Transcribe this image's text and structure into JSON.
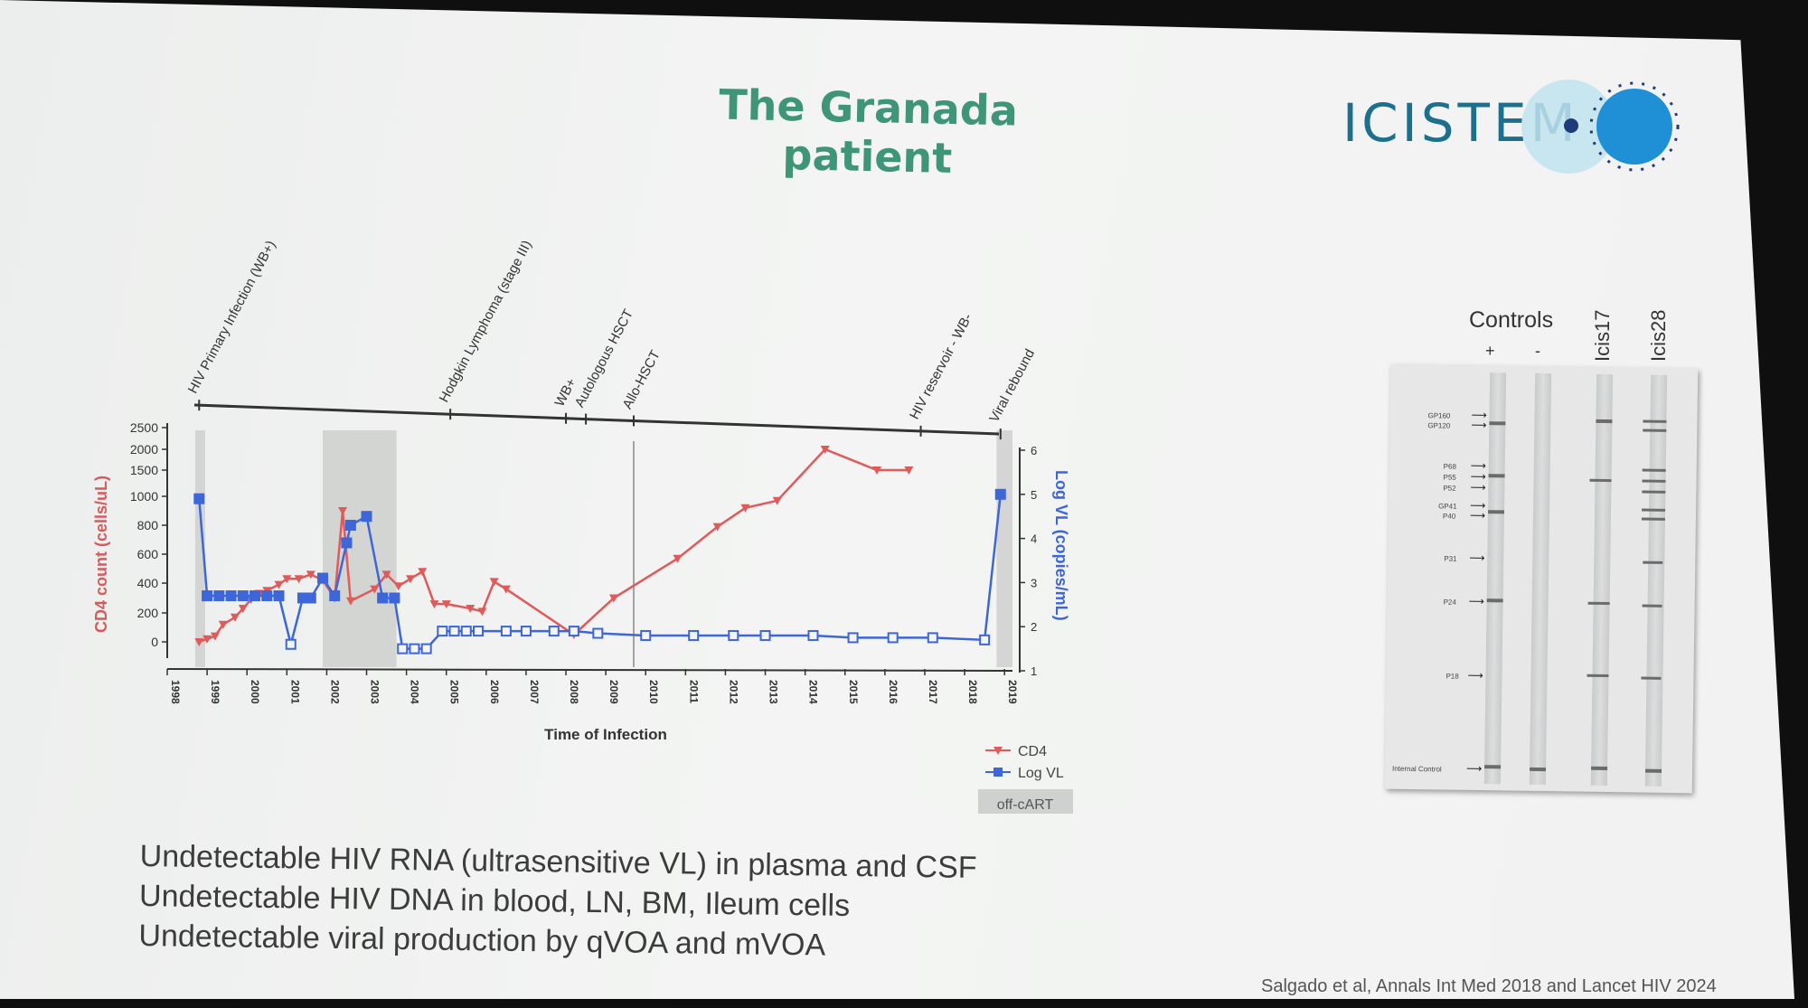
{
  "slide": {
    "title": "The Granada patient",
    "logo_text": "ICISTEM",
    "bullets": [
      "Undetectable HIV RNA (ultrasensitive VL) in plasma and CSF",
      "Undetectable HIV DNA in blood, LN, BM, Ileum cells",
      "Undetectable viral production by qVOA and mVOA"
    ],
    "citation": "Salgado et al, Annals Int Med 2018 and Lancet HIV 2024"
  },
  "chart_data": {
    "type": "line",
    "xlabel": "Time of Infection",
    "ylabel_left": "CD4 count (cells/uL)",
    "ylabel_right": "Log VL (copies/mL)",
    "x_ticks": [
      "1998",
      "1999",
      "2000",
      "2001",
      "2002",
      "2003",
      "2004",
      "2005",
      "2006",
      "2007",
      "2008",
      "2009",
      "2010",
      "2011",
      "2012",
      "2013",
      "2014",
      "2015",
      "2016",
      "2017",
      "2018",
      "2019"
    ],
    "xlim": [
      1998,
      2019.2
    ],
    "y_left_ticks": [
      "0",
      "200",
      "400",
      "600",
      "800",
      "1000",
      "1500",
      "2000",
      "2500"
    ],
    "y_right_ticks": [
      "1",
      "2",
      "3",
      "4",
      "5",
      "6"
    ],
    "ylim_right": [
      1,
      6
    ],
    "legend": [
      "CD4",
      "Log VL"
    ],
    "legend_extra": "off-cART",
    "events": [
      {
        "year": 1998.8,
        "label": "HIV Primary Infection (WB+)"
      },
      {
        "year": 2005.1,
        "label": "Hodgkin Lymphoma (stage III)"
      },
      {
        "year": 2008.0,
        "label": "WB+"
      },
      {
        "year": 2008.5,
        "label": "Autologous HSCT"
      },
      {
        "year": 2009.7,
        "label": "Allo-HSCT"
      },
      {
        "year": 2016.9,
        "label": "HIV reservoir - WB-"
      },
      {
        "year": 2018.9,
        "label": "Viral rebound"
      }
    ],
    "off_cart_periods": [
      [
        1998.7,
        1998.95
      ],
      [
        2001.9,
        2003.75
      ],
      [
        2018.8,
        2019.2
      ]
    ],
    "series": [
      {
        "name": "CD4",
        "color": "#e05a5a",
        "points": [
          [
            1998.8,
            0
          ],
          [
            1999.0,
            20
          ],
          [
            1999.2,
            40
          ],
          [
            1999.4,
            120
          ],
          [
            1999.7,
            170
          ],
          [
            1999.9,
            230
          ],
          [
            2000.1,
            290
          ],
          [
            2000.3,
            330
          ],
          [
            2000.5,
            350
          ],
          [
            2000.8,
            390
          ],
          [
            2001.0,
            430
          ],
          [
            2001.3,
            430
          ],
          [
            2001.6,
            460
          ],
          [
            2001.9,
            420
          ],
          [
            2002.2,
            300
          ],
          [
            2002.4,
            900
          ],
          [
            2002.6,
            280
          ],
          [
            2003.2,
            360
          ],
          [
            2003.5,
            460
          ],
          [
            2003.8,
            380
          ],
          [
            2004.1,
            430
          ],
          [
            2004.4,
            480
          ],
          [
            2004.7,
            260
          ],
          [
            2005.0,
            260
          ],
          [
            2005.6,
            230
          ],
          [
            2005.9,
            210
          ],
          [
            2006.2,
            410
          ],
          [
            2006.5,
            360
          ],
          [
            2008.2,
            50
          ],
          [
            2009.2,
            300
          ],
          [
            2010.8,
            570
          ],
          [
            2011.8,
            790
          ],
          [
            2012.5,
            920
          ],
          [
            2013.3,
            970
          ],
          [
            2014.5,
            2000
          ],
          [
            2015.8,
            1500
          ],
          [
            2016.6,
            1500
          ]
        ]
      },
      {
        "name": "Log VL",
        "color": "#3d66d8",
        "points": [
          [
            1998.8,
            4.9
          ],
          [
            1999.0,
            2.7
          ],
          [
            1999.3,
            2.7
          ],
          [
            1999.6,
            2.7
          ],
          [
            1999.9,
            2.7
          ],
          [
            2000.2,
            2.7
          ],
          [
            2000.5,
            2.7
          ],
          [
            2000.8,
            2.7
          ],
          [
            2001.1,
            1.6
          ],
          [
            2001.4,
            2.65
          ],
          [
            2001.6,
            2.65
          ],
          [
            2001.9,
            3.1
          ],
          [
            2002.2,
            2.7
          ],
          [
            2002.5,
            3.9
          ],
          [
            2002.6,
            4.3
          ],
          [
            2003.0,
            4.5
          ],
          [
            2003.4,
            2.65
          ],
          [
            2003.7,
            2.65
          ],
          [
            2003.9,
            1.5
          ],
          [
            2004.2,
            1.5
          ],
          [
            2004.5,
            1.5
          ],
          [
            2004.9,
            1.9
          ],
          [
            2005.2,
            1.9
          ],
          [
            2005.5,
            1.9
          ],
          [
            2005.8,
            1.9
          ],
          [
            2006.5,
            1.9
          ],
          [
            2007.0,
            1.9
          ],
          [
            2007.7,
            1.9
          ],
          [
            2008.2,
            1.9
          ],
          [
            2008.8,
            1.85
          ],
          [
            2010.0,
            1.8
          ],
          [
            2011.2,
            1.8
          ],
          [
            2012.2,
            1.8
          ],
          [
            2013.0,
            1.8
          ],
          [
            2014.2,
            1.8
          ],
          [
            2015.2,
            1.75
          ],
          [
            2016.2,
            1.75
          ],
          [
            2017.2,
            1.75
          ],
          [
            2018.5,
            1.7
          ],
          [
            2018.9,
            5.0
          ]
        ]
      }
    ]
  },
  "blot": {
    "controls_label": "Controls",
    "plus_label": "+",
    "minus_label": "-",
    "lanes": [
      "Icis17",
      "Icis28"
    ],
    "bands": [
      "GP160",
      "GP120",
      "P68",
      "P55",
      "P52",
      "GP41",
      "P40",
      "P31",
      "P24",
      "P18"
    ],
    "internal_control": "Internal Control"
  }
}
